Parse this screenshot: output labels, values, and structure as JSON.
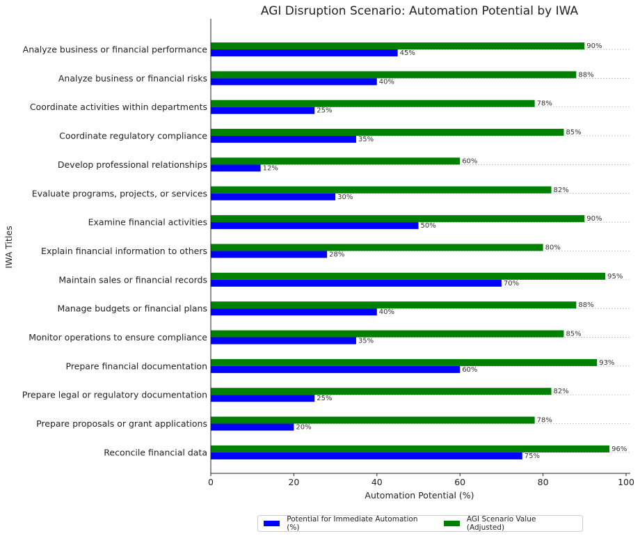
{
  "chart_data": {
    "type": "bar",
    "orientation": "horizontal",
    "title": "AGI Disruption Scenario: Automation Potential by IWA",
    "xlabel": "Automation Potential (%)",
    "ylabel": "IWA Titles",
    "xlim": [
      0,
      100
    ],
    "xticks": [
      "0",
      "20",
      "40",
      "60",
      "80",
      "100"
    ],
    "grid": "horizontal dashed",
    "legend_position": "bottom-center",
    "categories": [
      "Analyze business or financial performance",
      "Analyze business or financial risks",
      "Coordinate activities within departments",
      "Coordinate regulatory compliance",
      "Develop professional relationships",
      "Evaluate programs, projects, or services",
      "Examine financial activities",
      "Explain financial information to others",
      "Maintain sales or financial records",
      "Manage budgets or financial plans",
      "Monitor operations to ensure compliance",
      "Prepare financial documentation",
      "Prepare legal or regulatory documentation",
      "Prepare proposals or grant applications",
      "Reconcile financial data"
    ],
    "series": [
      {
        "name": "Potential for Immediate Automation (%)",
        "color": "#0000ff",
        "values": [
          45,
          40,
          25,
          35,
          12,
          30,
          50,
          28,
          70,
          40,
          35,
          60,
          25,
          20,
          75
        ],
        "labels": [
          "45%",
          "40%",
          "25%",
          "35%",
          "12%",
          "30%",
          "50%",
          "28%",
          "70%",
          "40%",
          "35%",
          "60%",
          "25%",
          "20%",
          "75%"
        ]
      },
      {
        "name": "AGI Scenario Value (Adjusted)",
        "color": "#008000",
        "values": [
          90,
          88,
          78,
          85,
          60,
          82,
          90,
          80,
          95,
          88,
          85,
          93,
          82,
          78,
          96
        ],
        "labels": [
          "90%",
          "88%",
          "78%",
          "85%",
          "60%",
          "82%",
          "90%",
          "80%",
          "95%",
          "88%",
          "85%",
          "93%",
          "82%",
          "78%",
          "96%"
        ]
      }
    ]
  }
}
